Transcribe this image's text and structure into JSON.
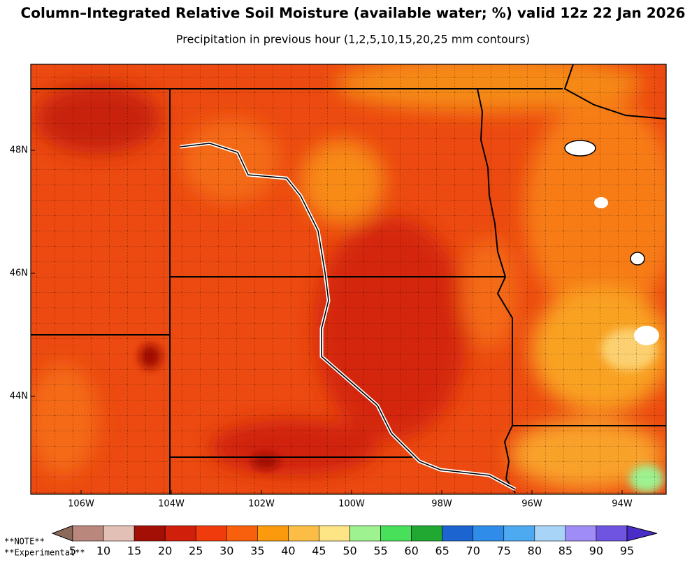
{
  "title": "Column–Integrated Relative Soil Moisture (available water; %) valid 12z 22 Jan 2026",
  "subtitle": "Precipitation in previous hour (1,2,5,10,15,20,25 mm contours)",
  "map": {
    "lat_labels": [
      "48N",
      "46N",
      "44N"
    ],
    "lon_labels": [
      "106W",
      "104W",
      "102W",
      "100W",
      "98W",
      "96W",
      "94W"
    ]
  },
  "colorbar": {
    "ticks": [
      5,
      10,
      15,
      20,
      25,
      30,
      35,
      40,
      45,
      50,
      55,
      60,
      65,
      70,
      75,
      80,
      85,
      90,
      95
    ],
    "colors": [
      "#8c6a5a",
      "#b9877c",
      "#e3c0b6",
      "#a30f05",
      "#d01f0a",
      "#f03c0c",
      "#f8600e",
      "#fa9a0c",
      "#fbbd45",
      "#fde585",
      "#9ef290",
      "#48e05a",
      "#20a832",
      "#1c64d0",
      "#2f8ce8",
      "#4eaaf0",
      "#a8d4f8",
      "#a08cf6",
      "#6e54e0",
      "#4a2cc8"
    ]
  },
  "notes": [
    "**NOTE**",
    "**Experimental**"
  ]
}
